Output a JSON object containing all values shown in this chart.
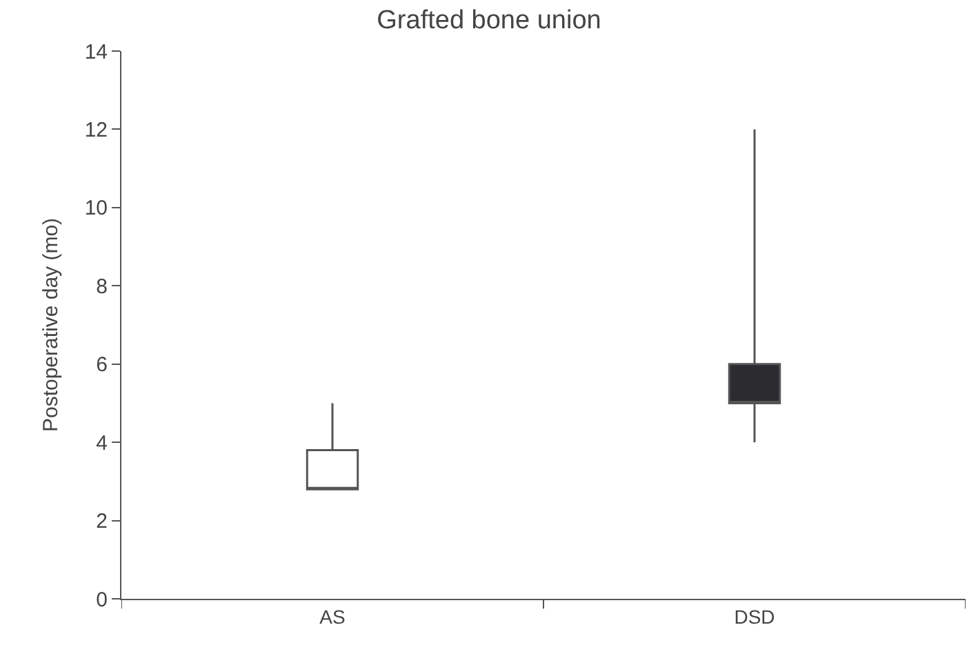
{
  "chart_data": {
    "type": "box",
    "title": "Grafted bone union",
    "ylabel": "Postoperative day (mo)",
    "categories": [
      "AS",
      "DSD"
    ],
    "boxes": [
      {
        "low": 2.8,
        "q1": 2.8,
        "median": 2.8,
        "q3": 3.8,
        "high": 5
      },
      {
        "low": 4,
        "q1": 5,
        "median": 5,
        "q3": 6,
        "high": 12
      }
    ],
    "colors": [
      "#ffffff",
      "#2b2b30"
    ],
    "ylim": [
      0,
      14
    ],
    "yticks": [
      0,
      2,
      4,
      6,
      8,
      10,
      12,
      14
    ]
  }
}
